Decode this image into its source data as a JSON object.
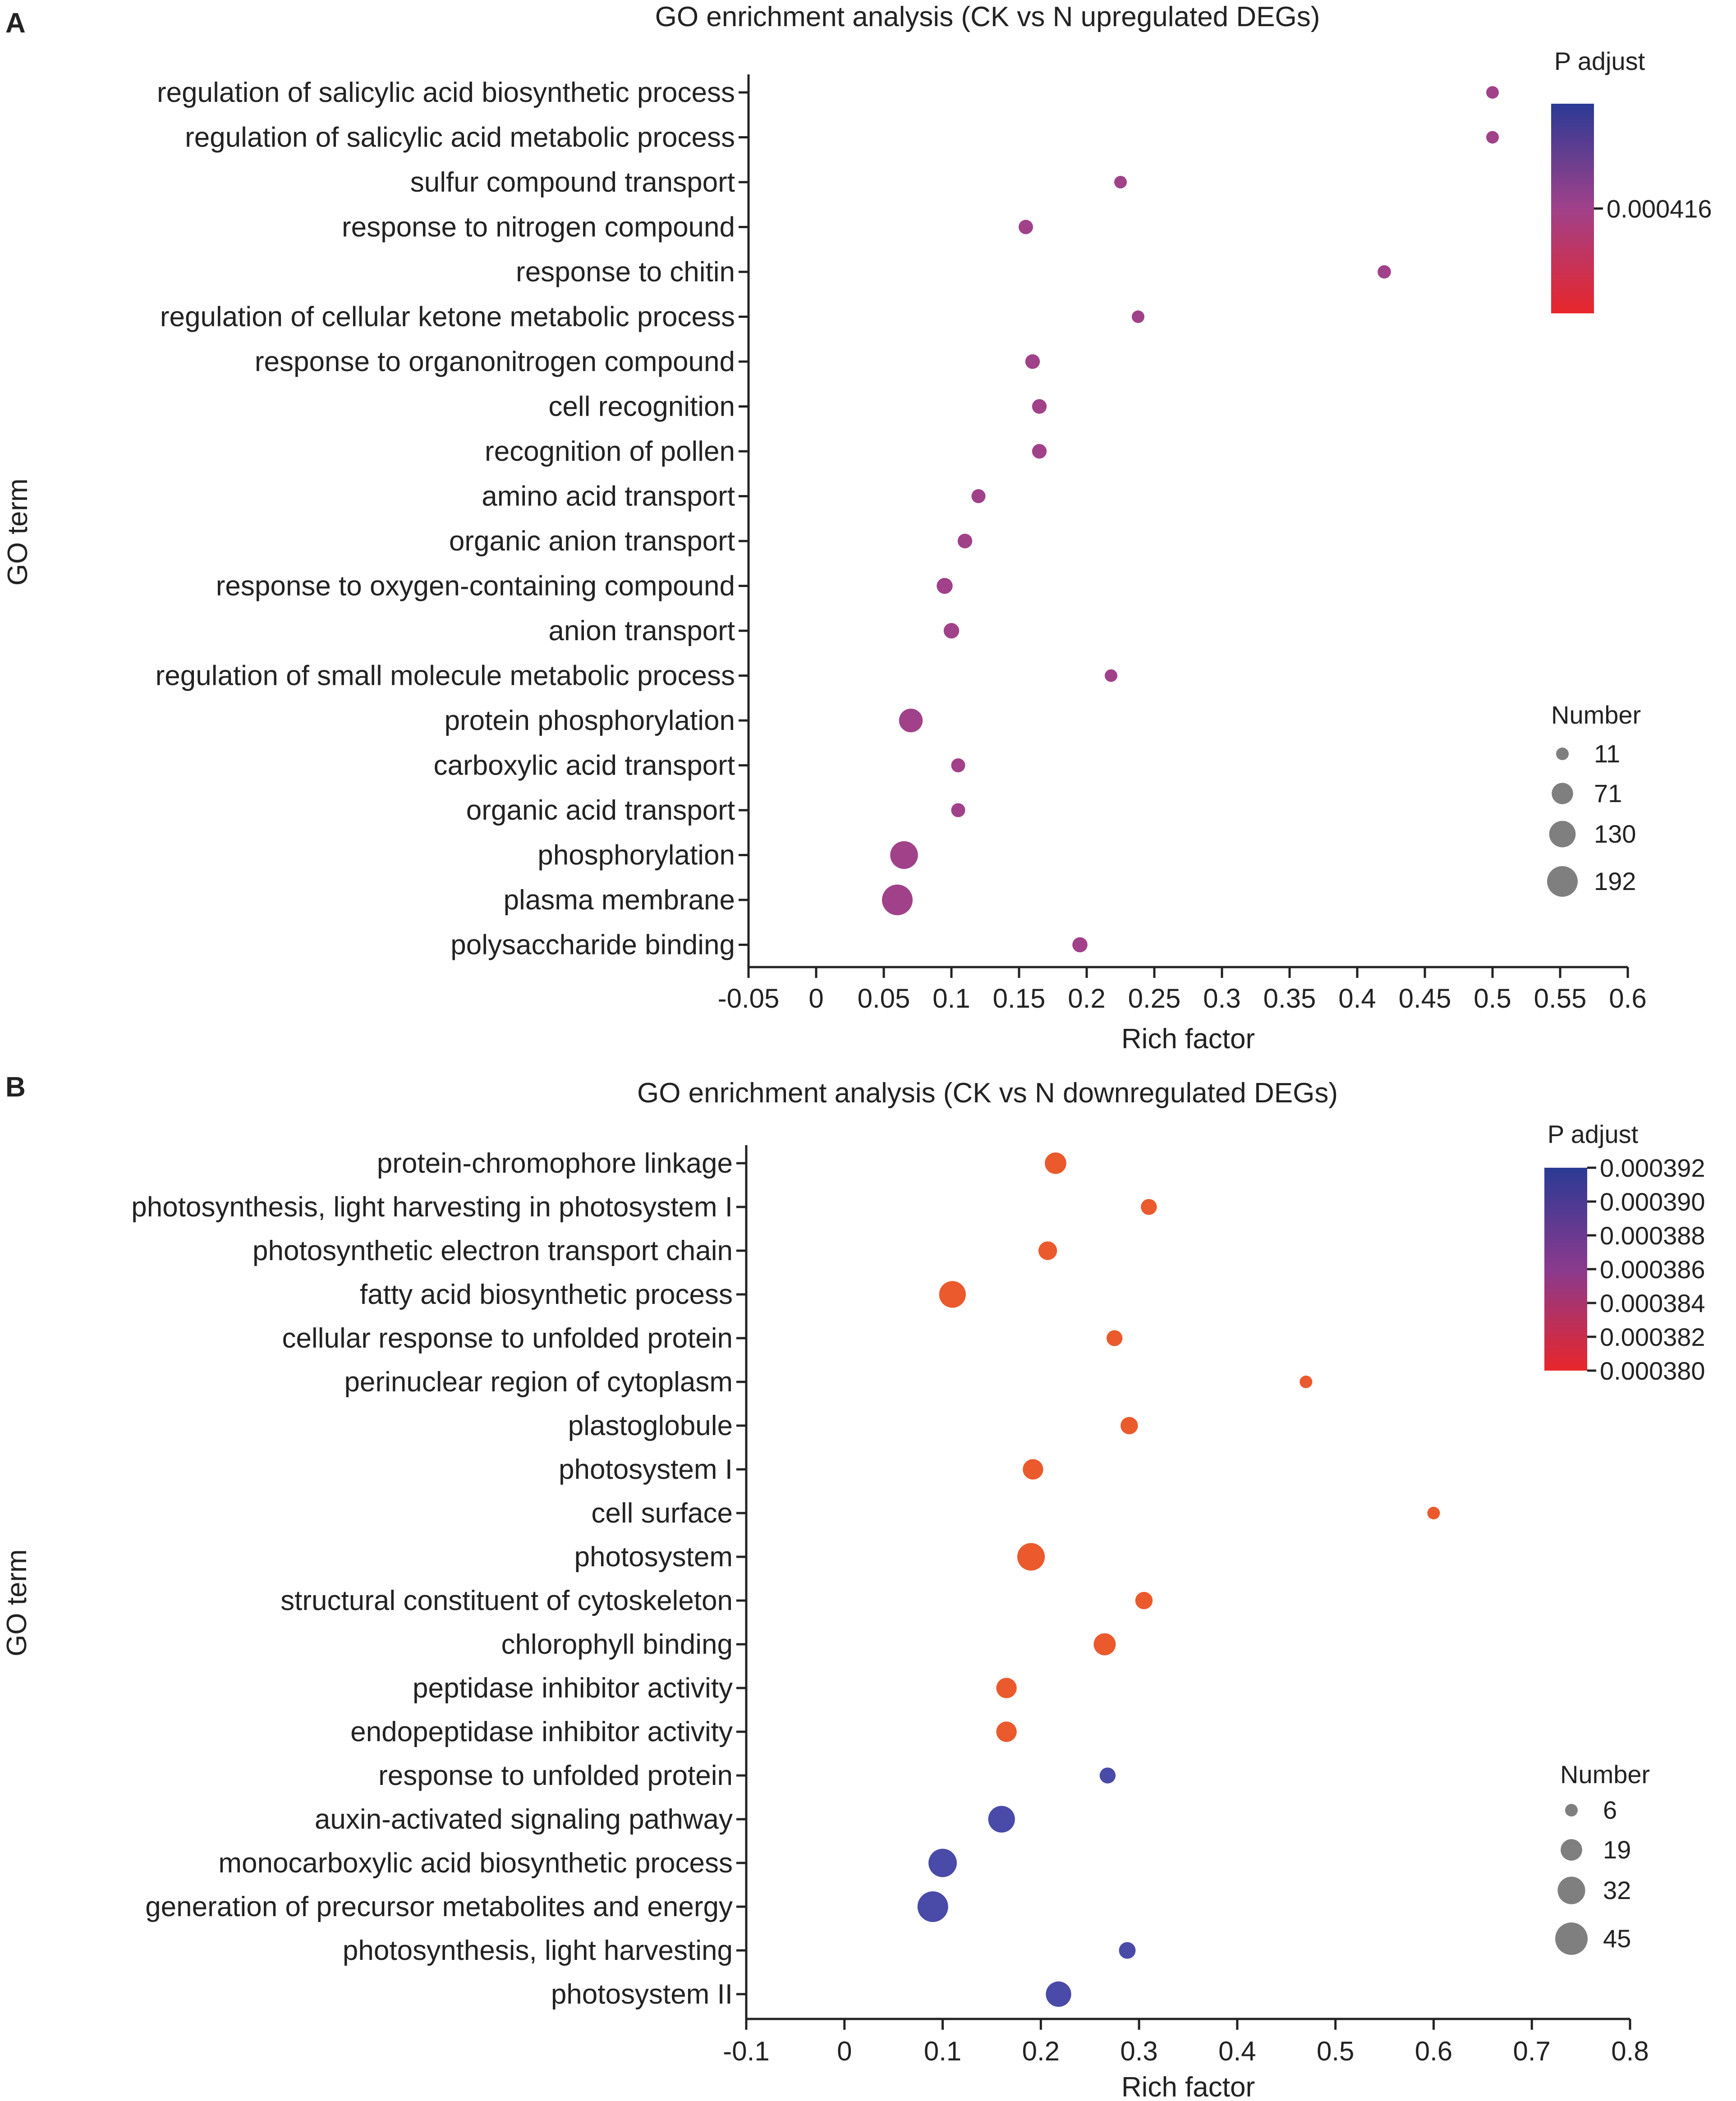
{
  "figure": {
    "panels": [
      {
        "letter": "A"
      },
      {
        "letter": "B"
      }
    ]
  },
  "chart_data": [
    {
      "type": "scatter",
      "title": "GO enrichment analysis (CK vs N upregulated DEGs)",
      "xlabel": "Rich factor",
      "ylabel": "GO term",
      "xlim": [
        -0.05,
        0.6
      ],
      "xticks": [
        -0.05,
        0,
        0.05,
        0.1,
        0.15,
        0.2,
        0.25,
        0.3,
        0.35,
        0.4,
        0.45,
        0.5,
        0.55,
        0.6
      ],
      "xtick_labels": [
        "-0.05",
        "0",
        "0.05",
        "0.1",
        "0.15",
        "0.2",
        "0.25",
        "0.3",
        "0.35",
        "0.4",
        "0.45",
        "0.5",
        "0.55",
        "0.6"
      ],
      "terms": [
        "regulation of salicylic acid biosynthetic process",
        "regulation of salicylic acid metabolic process",
        "sulfur compound transport",
        "response to nitrogen compound",
        "response to chitin",
        "regulation of cellular ketone metabolic process",
        "response to organonitrogen compound",
        "cell recognition",
        "recognition of pollen",
        "amino acid transport",
        "organic anion transport",
        "response to oxygen-containing compound",
        "anion transport",
        "regulation of small molecule metabolic process",
        "protein phosphorylation",
        "carboxylic acid transport",
        "organic acid transport",
        "phosphorylation",
        "plasma membrane",
        "polysaccharide binding"
      ],
      "rich_factor": [
        0.5,
        0.5,
        0.225,
        0.155,
        0.42,
        0.238,
        0.16,
        0.165,
        0.165,
        0.12,
        0.11,
        0.095,
        0.1,
        0.218,
        0.07,
        0.105,
        0.105,
        0.065,
        0.06,
        0.195
      ],
      "count": [
        11,
        11,
        11,
        19,
        14,
        11,
        20,
        20,
        20,
        17,
        20,
        28,
        25,
        11,
        95,
        17,
        17,
        148,
        192,
        23
      ],
      "p_adjust": [
        0.000416,
        0.000416,
        0.000416,
        0.000416,
        0.000416,
        0.000416,
        0.000416,
        0.000416,
        0.000416,
        0.000416,
        0.000416,
        0.000416,
        0.000416,
        0.000416,
        0.000416,
        0.000416,
        0.000416,
        0.000416,
        0.000416,
        0.000416
      ],
      "size_legend": {
        "title": "Number",
        "values": [
          11,
          71,
          130,
          192
        ],
        "labels": [
          "11",
          "71",
          "130",
          "192"
        ]
      },
      "color_legend": {
        "title": "P adjust",
        "range": [
          0.000396,
          0.000436
        ],
        "tick_values": [
          0.000416
        ],
        "tick_labels": [
          "0.000416"
        ],
        "low_color": "#e8262b",
        "high_color": "#2b3a94"
      },
      "point_color": "#a0418a",
      "legend_position": "right"
    },
    {
      "type": "scatter",
      "title": "GO enrichment analysis (CK vs N downregulated DEGs)",
      "xlabel": "Rich factor",
      "ylabel": "GO term",
      "xlim": [
        -0.1,
        0.8
      ],
      "xticks": [
        -0.1,
        0,
        0.1,
        0.2,
        0.3,
        0.4,
        0.5,
        0.6,
        0.7,
        0.8
      ],
      "xtick_labels": [
        "-0.1",
        "0",
        "0.1",
        "0.2",
        "0.3",
        "0.4",
        "0.5",
        "0.6",
        "0.7",
        "0.8"
      ],
      "terms": [
        "protein-chromophore linkage",
        "photosynthesis, light harvesting in photosystem I",
        "photosynthetic electron transport chain",
        "fatty acid biosynthetic process",
        "cellular response to unfolded protein",
        "perinuclear region of cytoplasm",
        "plastoglobule",
        "photosystem I",
        "cell surface",
        "photosystem",
        "structural constituent of cytoskeleton",
        "chlorophyll binding",
        "peptidase inhibitor activity",
        "endopeptidase inhibitor activity",
        "response to unfolded protein",
        "auxin-activated signaling pathway",
        "monocarboxylic acid biosynthetic process",
        "generation of precursor metabolites and energy",
        "photosynthesis, light harvesting",
        "photosystem II"
      ],
      "rich_factor": [
        0.215,
        0.31,
        0.207,
        0.11,
        0.275,
        0.47,
        0.29,
        0.192,
        0.6,
        0.19,
        0.305,
        0.265,
        0.165,
        0.165,
        0.268,
        0.16,
        0.1,
        0.09,
        0.288,
        0.218
      ],
      "count": [
        19,
        10,
        14,
        30,
        10,
        6,
        12,
        17,
        6,
        32,
        12,
        20,
        17,
        17,
        10,
        30,
        34,
        40,
        11,
        27
      ],
      "p_adjust": [
        0.000381,
        0.000381,
        0.000381,
        0.000381,
        0.000381,
        0.000381,
        0.000381,
        0.000381,
        0.000381,
        0.000381,
        0.000381,
        0.000381,
        0.000381,
        0.000381,
        0.00039,
        0.00039,
        0.00039,
        0.00039,
        0.00039,
        0.00039
      ],
      "size_legend": {
        "title": "Number",
        "values": [
          6,
          19,
          32,
          45
        ],
        "labels": [
          "6",
          "19",
          "32",
          "45"
        ]
      },
      "color_legend": {
        "title": "P adjust",
        "range": [
          0.00038,
          0.000392
        ],
        "tick_values": [
          0.000392,
          0.00039,
          0.000388,
          0.000386,
          0.000384,
          0.000382,
          0.00038
        ],
        "tick_labels": [
          "0.000392",
          "0.000390",
          "0.000388",
          "0.000386",
          "0.000384",
          "0.000382",
          "0.000380"
        ],
        "low_color": "#e8262b",
        "high_color": "#2b3a94"
      },
      "point_colors": {
        "low": "#ea5a2c",
        "high": "#4a4aa8"
      },
      "legend_position": "right"
    }
  ]
}
